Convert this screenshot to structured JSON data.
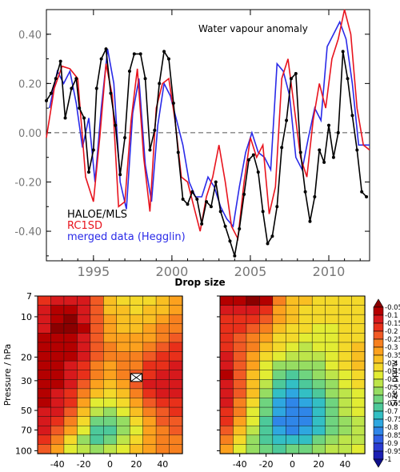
{
  "chart_data": [
    {
      "type": "line",
      "title": "Water vapour anomaly",
      "xlim": [
        1992,
        2012.6
      ],
      "ylim": [
        -0.52,
        0.5
      ],
      "x_ticks": [
        "1995",
        "2000",
        "2005",
        "2010"
      ],
      "y_ticks": [
        "0.40",
        "0.20",
        "0.00",
        "-0.20",
        "-0.40"
      ],
      "zero_line": "dashed",
      "legend": [
        "HALOE/MLS",
        "RC1SD",
        "merged data (Hegglin)"
      ],
      "legend_placement": "bottom-left",
      "series": [
        {
          "name": "HALOE/MLS",
          "color": "#000000",
          "markers": true,
          "x": [
            1992.0,
            1992.3,
            1992.6,
            1992.9,
            1993.2,
            1993.6,
            1993.9,
            1994.1,
            1994.4,
            1994.7,
            1995.0,
            1995.2,
            1995.5,
            1995.8,
            1996.1,
            1996.4,
            1996.7,
            1997.0,
            1997.3,
            1997.6,
            1998.0,
            1998.3,
            1998.6,
            1998.9,
            1999.2,
            1999.5,
            1999.8,
            2000.1,
            2000.4,
            2000.7,
            2001.0,
            2001.3,
            2001.6,
            2001.9,
            2002.2,
            2002.5,
            2002.8,
            2003.1,
            2003.4,
            2003.7,
            2004.0,
            2004.3,
            2004.6,
            2004.9,
            2005.2,
            2005.5,
            2005.8,
            2006.1,
            2006.4,
            2006.7,
            2007.0,
            2007.3,
            2007.6,
            2007.9,
            2008.2,
            2008.5,
            2008.8,
            2009.1,
            2009.4,
            2009.7,
            2010.0,
            2010.3,
            2010.6,
            2010.9,
            2011.2,
            2011.5,
            2011.8,
            2012.1,
            2012.4
          ],
          "y": [
            0.13,
            0.16,
            0.22,
            0.29,
            0.06,
            0.18,
            0.22,
            0.1,
            0.06,
            -0.16,
            -0.07,
            0.18,
            0.3,
            0.34,
            0.16,
            0.03,
            -0.17,
            -0.02,
            0.25,
            0.32,
            0.32,
            0.22,
            -0.07,
            0.01,
            0.2,
            0.33,
            0.3,
            0.12,
            -0.08,
            -0.27,
            -0.29,
            -0.24,
            -0.27,
            -0.37,
            -0.28,
            -0.3,
            -0.2,
            -0.32,
            -0.38,
            -0.44,
            -0.5,
            -0.39,
            -0.25,
            -0.11,
            -0.09,
            -0.16,
            -0.32,
            -0.45,
            -0.42,
            -0.3,
            -0.06,
            0.05,
            0.22,
            0.24,
            -0.08,
            -0.24,
            -0.36,
            -0.26,
            -0.07,
            -0.12,
            0.03,
            -0.1,
            0.0,
            0.33,
            0.22,
            0.07,
            -0.07,
            -0.24,
            -0.26
          ]
        },
        {
          "name": "RC1SD",
          "color": "#e8141e",
          "markers": false,
          "x": [
            1992.0,
            1992.5,
            1993.0,
            1993.5,
            1994.0,
            1994.5,
            1995.0,
            1995.4,
            1995.8,
            1996.2,
            1996.6,
            1997.0,
            1997.4,
            1997.8,
            1998.2,
            1998.6,
            1999.0,
            1999.4,
            1999.8,
            2000.2,
            2000.6,
            2001.0,
            2001.4,
            2001.8,
            2002.2,
            2002.6,
            2003.0,
            2003.4,
            2003.8,
            2004.2,
            2004.6,
            2005.0,
            2005.4,
            2005.8,
            2006.2,
            2006.6,
            2007.0,
            2007.4,
            2007.8,
            2008.2,
            2008.6,
            2009.0,
            2009.4,
            2009.8,
            2010.2,
            2010.6,
            2011.0,
            2011.4,
            2011.8,
            2012.2,
            2012.6
          ],
          "y": [
            -0.02,
            0.18,
            0.27,
            0.26,
            0.22,
            -0.18,
            -0.28,
            -0.02,
            0.28,
            0.15,
            -0.3,
            -0.28,
            0.05,
            0.26,
            -0.1,
            -0.32,
            0.1,
            0.2,
            0.22,
            0.05,
            -0.18,
            -0.2,
            -0.3,
            -0.4,
            -0.26,
            -0.18,
            -0.05,
            -0.2,
            -0.38,
            -0.43,
            -0.2,
            -0.02,
            -0.1,
            -0.05,
            -0.33,
            -0.22,
            0.22,
            0.3,
            0.1,
            -0.1,
            -0.18,
            0.05,
            0.2,
            0.1,
            0.3,
            0.38,
            0.5,
            0.4,
            0.1,
            -0.05,
            -0.07
          ]
        },
        {
          "name": "merged data (Hegglin)",
          "color": "#2a2ae8",
          "markers": false,
          "x": [
            1992.2,
            1992.7,
            1993.1,
            1993.5,
            1993.9,
            1994.3,
            1994.7,
            1995.1,
            1995.5,
            1995.9,
            1996.3,
            1996.7,
            1997.1,
            1997.5,
            1997.9,
            1998.3,
            1998.7,
            1999.1,
            1999.5,
            1999.9,
            2000.3,
            2000.7,
            2001.1,
            2001.5,
            2001.9,
            2002.3,
            2002.7,
            2003.1,
            2003.5,
            2003.9,
            2004.3,
            2004.7,
            2005.1,
            2005.5,
            2005.9,
            2006.3,
            2006.7,
            2007.1,
            2007.5,
            2007.9,
            2008.3,
            2008.7,
            2009.1,
            2009.5,
            2009.9,
            2010.3,
            2010.7,
            2011.1,
            2011.5,
            2011.9,
            2012.3,
            2012.6
          ],
          "y": [
            0.1,
            0.25,
            0.2,
            0.25,
            0.12,
            -0.06,
            0.06,
            -0.2,
            0.1,
            0.34,
            0.2,
            -0.2,
            -0.31,
            0.08,
            0.22,
            -0.13,
            -0.28,
            0.03,
            0.2,
            0.15,
            0.05,
            -0.05,
            -0.2,
            -0.26,
            -0.26,
            -0.18,
            -0.22,
            -0.3,
            -0.35,
            -0.38,
            -0.22,
            -0.08,
            0.0,
            -0.08,
            -0.1,
            -0.15,
            0.28,
            0.25,
            0.15,
            -0.1,
            -0.15,
            -0.02,
            0.1,
            0.05,
            0.35,
            0.4,
            0.45,
            0.38,
            0.2,
            -0.05,
            -0.05,
            -0.05
          ]
        }
      ]
    },
    {
      "type": "heatmap",
      "title": "Drop size",
      "ylabel": "Pressure / hPa",
      "y_tick_labels": [
        "7",
        "10",
        "20",
        "30",
        "50",
        "70",
        "100"
      ],
      "x_tick_labels": [
        "-40",
        "-20",
        "0",
        "20",
        "40"
      ],
      "marker_note": "cross marker at latitude 20, 30 hPa in left panel",
      "panels": [
        {
          "name": "left",
          "rows": 17,
          "cols": 11,
          "values": [
            [
              0.2,
              0.17,
              0.15,
              0.16,
              0.26,
              0.4,
              0.43,
              0.43,
              0.43,
              0.41,
              0.36
            ],
            [
              0.16,
              0.12,
              0.1,
              0.14,
              0.27,
              0.38,
              0.42,
              0.43,
              0.42,
              0.38,
              0.33
            ],
            [
              0.13,
              0.08,
              0.07,
              0.13,
              0.26,
              0.36,
              0.4,
              0.41,
              0.39,
              0.34,
              0.3
            ],
            [
              0.13,
              0.07,
              0.07,
              0.12,
              0.25,
              0.34,
              0.38,
              0.39,
              0.36,
              0.32,
              0.28
            ],
            [
              0.12,
              0.08,
              0.08,
              0.13,
              0.25,
              0.33,
              0.36,
              0.36,
              0.33,
              0.29,
              0.26
            ],
            [
              0.11,
              0.09,
              0.1,
              0.15,
              0.26,
              0.32,
              0.33,
              0.33,
              0.3,
              0.26,
              0.22
            ],
            [
              0.1,
              0.1,
              0.12,
              0.17,
              0.27,
              0.32,
              0.31,
              0.3,
              0.26,
              0.22,
              0.19
            ],
            [
              0.09,
              0.1,
              0.13,
              0.19,
              0.29,
              0.33,
              0.3,
              0.28,
              0.22,
              0.18,
              0.16
            ],
            [
              0.09,
              0.11,
              0.14,
              0.21,
              0.31,
              0.34,
              0.3,
              0.25,
              0.18,
              0.15,
              0.14
            ],
            [
              0.1,
              0.12,
              0.16,
              0.24,
              0.35,
              0.38,
              0.34,
              0.24,
              0.14,
              0.13,
              0.13
            ],
            [
              0.11,
              0.13,
              0.19,
              0.29,
              0.42,
              0.44,
              0.38,
              0.28,
              0.18,
              0.16,
              0.15
            ],
            [
              0.12,
              0.15,
              0.22,
              0.35,
              0.5,
              0.52,
              0.44,
              0.34,
              0.23,
              0.19,
              0.18
            ],
            [
              0.13,
              0.17,
              0.25,
              0.4,
              0.57,
              0.59,
              0.51,
              0.39,
              0.28,
              0.23,
              0.21
            ],
            [
              0.14,
              0.2,
              0.3,
              0.46,
              0.64,
              0.66,
              0.58,
              0.45,
              0.33,
              0.27,
              0.24
            ],
            [
              0.16,
              0.24,
              0.36,
              0.52,
              0.7,
              0.7,
              0.62,
              0.49,
              0.37,
              0.3,
              0.27
            ],
            [
              0.2,
              0.3,
              0.44,
              0.58,
              0.68,
              0.66,
              0.57,
              0.46,
              0.36,
              0.31,
              0.29
            ],
            [
              0.26,
              0.36,
              0.48,
              0.56,
              0.6,
              0.56,
              0.48,
              0.4,
              0.33,
              0.3,
              0.28
            ]
          ]
        },
        {
          "name": "right",
          "rows": 17,
          "cols": 11,
          "values": [
            [
              0.12,
              0.08,
              0.07,
              0.12,
              0.32,
              0.38,
              0.42,
              0.45,
              0.45,
              0.44,
              0.43
            ],
            [
              0.17,
              0.14,
              0.13,
              0.18,
              0.34,
              0.4,
              0.44,
              0.46,
              0.46,
              0.45,
              0.44
            ],
            [
              0.2,
              0.18,
              0.19,
              0.24,
              0.37,
              0.42,
              0.45,
              0.47,
              0.47,
              0.46,
              0.45
            ],
            [
              0.21,
              0.21,
              0.24,
              0.29,
              0.4,
              0.44,
              0.47,
              0.49,
              0.48,
              0.46,
              0.44
            ],
            [
              0.2,
              0.23,
              0.28,
              0.33,
              0.43,
              0.47,
              0.49,
              0.5,
              0.48,
              0.45,
              0.43
            ],
            [
              0.18,
              0.24,
              0.31,
              0.38,
              0.47,
              0.51,
              0.53,
              0.52,
              0.49,
              0.45,
              0.42
            ],
            [
              0.15,
              0.24,
              0.34,
              0.43,
              0.52,
              0.56,
              0.57,
              0.55,
              0.5,
              0.45,
              0.41
            ],
            [
              0.13,
              0.24,
              0.36,
              0.48,
              0.58,
              0.62,
              0.62,
              0.58,
              0.52,
              0.46,
              0.42
            ],
            [
              0.12,
              0.24,
              0.38,
              0.52,
              0.64,
              0.68,
              0.67,
              0.62,
              0.55,
              0.48,
              0.44
            ],
            [
              0.13,
              0.25,
              0.4,
              0.56,
              0.7,
              0.74,
              0.72,
              0.66,
              0.58,
              0.51,
              0.46
            ],
            [
              0.15,
              0.27,
              0.42,
              0.6,
              0.75,
              0.79,
              0.77,
              0.7,
              0.61,
              0.53,
              0.48
            ],
            [
              0.17,
              0.29,
              0.45,
              0.64,
              0.79,
              0.83,
              0.81,
              0.73,
              0.63,
              0.55,
              0.5
            ],
            [
              0.19,
              0.32,
              0.48,
              0.67,
              0.82,
              0.86,
              0.83,
              0.75,
              0.65,
              0.57,
              0.52
            ],
            [
              0.22,
              0.35,
              0.52,
              0.7,
              0.83,
              0.86,
              0.83,
              0.75,
              0.66,
              0.58,
              0.53
            ],
            [
              0.25,
              0.39,
              0.56,
              0.72,
              0.82,
              0.83,
              0.8,
              0.73,
              0.65,
              0.58,
              0.54
            ],
            [
              0.3,
              0.44,
              0.59,
              0.71,
              0.77,
              0.77,
              0.73,
              0.67,
              0.61,
              0.56,
              0.53
            ],
            [
              0.36,
              0.48,
              0.59,
              0.66,
              0.68,
              0.67,
              0.63,
              0.59,
              0.56,
              0.53,
              0.51
            ]
          ]
        }
      ],
      "colorbar": {
        "label": "Size / ppmv",
        "tick_labels": [
          "-0.05",
          "-0.1",
          "-0.15",
          "-0.2",
          "-0.25",
          "-0.3",
          "-0.35",
          "-0.4",
          "-0.45",
          "-0.5",
          "-0.55",
          "-0.6",
          "-0.65",
          "-0.7",
          "-0.75",
          "-0.8",
          "-0.85",
          "-0.9",
          "-0.95",
          "-1"
        ],
        "colors": [
          "#8b0000",
          "#b40000",
          "#d7191c",
          "#e8301a",
          "#f15a24",
          "#f7801f",
          "#fca11e",
          "#f9bf22",
          "#f4d92a",
          "#e2ec33",
          "#bde54a",
          "#96dd62",
          "#6fd47f",
          "#4dc99a",
          "#33bfc4",
          "#2ea7e0",
          "#2f86e8",
          "#2f5fe6",
          "#2a3bd2",
          "#1b1fb3",
          "#0f0f8a"
        ]
      }
    }
  ]
}
